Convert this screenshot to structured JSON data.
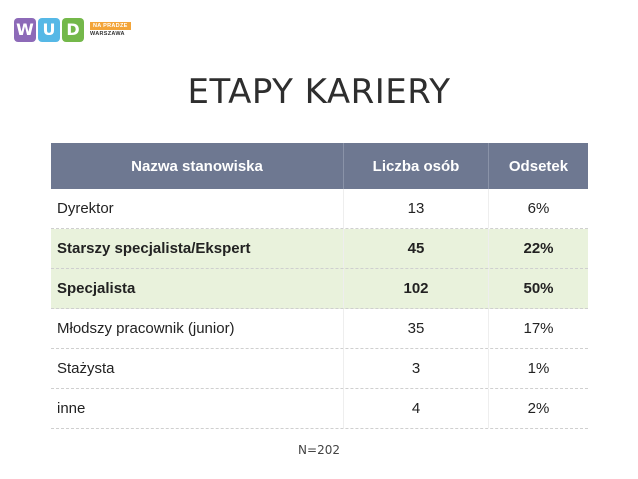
{
  "logo": {
    "letters": [
      "W",
      "U",
      "D"
    ],
    "tag_top": "NA PRADZE",
    "tag_bottom": "WARSZAWA"
  },
  "title": "ETAPY KARIERY",
  "table": {
    "headers": [
      "Nazwa stanowiska",
      "Liczba osób",
      "Odsetek"
    ],
    "rows": [
      {
        "name": "Dyrektor",
        "count": "13",
        "percent": "6%",
        "highlight": false
      },
      {
        "name": "Starszy specjalista/Ekspert",
        "count": "45",
        "percent": "22%",
        "highlight": true
      },
      {
        "name": "Specjalista",
        "count": "102",
        "percent": "50%",
        "highlight": true
      },
      {
        "name": "Młodszy pracownik (junior)",
        "count": "35",
        "percent": "17%",
        "highlight": false
      },
      {
        "name": "Stażysta",
        "count": "3",
        "percent": "1%",
        "highlight": false
      },
      {
        "name": "inne",
        "count": "4",
        "percent": "2%",
        "highlight": false
      }
    ]
  },
  "note": "N=202",
  "colors": {
    "header_bg": "#6e7891",
    "highlight_bg": "#e9f2dc",
    "logo_w": "#8d6ab8",
    "logo_u": "#56b8e6",
    "logo_d": "#74b84a",
    "logo_tag": "#f3a53a"
  }
}
